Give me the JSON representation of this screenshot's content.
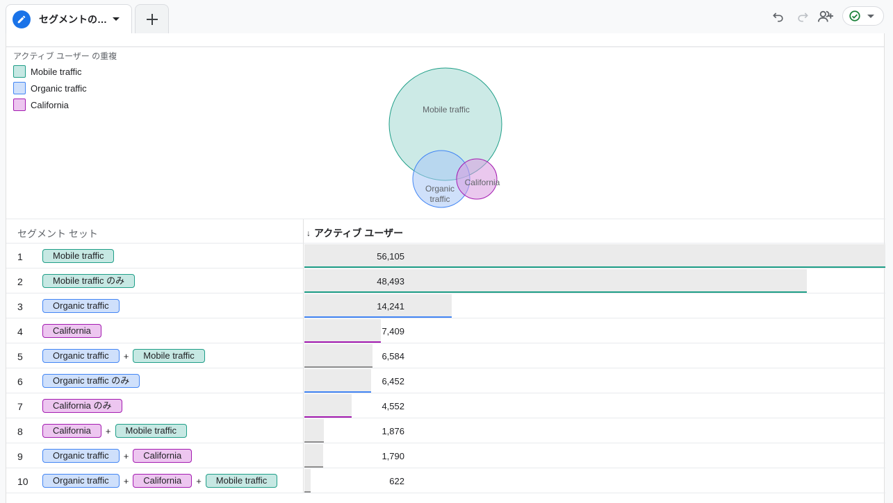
{
  "tab": {
    "label": "セグメントの…"
  },
  "colors": {
    "mobile": {
      "fill": "#c6e8e3",
      "stroke": "#1e9e87"
    },
    "organic": {
      "fill": "#cfe0fb",
      "stroke": "#4285f4"
    },
    "california": {
      "fill": "#edc6f0",
      "stroke": "#a31ab0"
    },
    "intersection": "#8f8f8f",
    "brand": "#1a73e8",
    "status_ok": "#188038"
  },
  "toolbar": {
    "icons": [
      "undo-icon",
      "redo-icon",
      "share-user-icon",
      "check-circle-icon"
    ]
  },
  "chart": {
    "title": "アクティブ ユーザー の重複",
    "legend": [
      {
        "label": "Mobile traffic",
        "key": "mobile"
      },
      {
        "label": "Organic traffic",
        "key": "organic"
      },
      {
        "label": "California",
        "key": "california"
      }
    ],
    "venn_labels": {
      "mobile": "Mobile traffic",
      "organic_1": "Organic",
      "organic_2": "traffic",
      "california": "California"
    }
  },
  "table": {
    "col_segment": "セグメント セット",
    "col_metric": "アクティブ ユーザー",
    "sort_arrow": "↓",
    "max": 56105,
    "rows": [
      {
        "num": "1",
        "value": "56,105",
        "n": 56105,
        "line": "mobile",
        "chips": [
          {
            "label": "Mobile traffic",
            "key": "mobile"
          }
        ]
      },
      {
        "num": "2",
        "value": "48,493",
        "n": 48493,
        "line": "mobile",
        "chips": [
          {
            "label": "Mobile traffic のみ",
            "key": "mobile"
          }
        ]
      },
      {
        "num": "3",
        "value": "14,241",
        "n": 14241,
        "line": "organic",
        "chips": [
          {
            "label": "Organic traffic",
            "key": "organic"
          }
        ]
      },
      {
        "num": "4",
        "value": "7,409",
        "n": 7409,
        "line": "california",
        "chips": [
          {
            "label": "California",
            "key": "california"
          }
        ]
      },
      {
        "num": "5",
        "value": "6,584",
        "n": 6584,
        "line": "intersection",
        "chips": [
          {
            "label": "Organic traffic",
            "key": "organic"
          },
          {
            "label": "Mobile traffic",
            "key": "mobile"
          }
        ]
      },
      {
        "num": "6",
        "value": "6,452",
        "n": 6452,
        "line": "organic",
        "chips": [
          {
            "label": "Organic traffic のみ",
            "key": "organic"
          }
        ]
      },
      {
        "num": "7",
        "value": "4,552",
        "n": 4552,
        "line": "california",
        "chips": [
          {
            "label": "California のみ",
            "key": "california"
          }
        ]
      },
      {
        "num": "8",
        "value": "1,876",
        "n": 1876,
        "line": "intersection",
        "chips": [
          {
            "label": "California",
            "key": "california"
          },
          {
            "label": "Mobile traffic",
            "key": "mobile"
          }
        ]
      },
      {
        "num": "9",
        "value": "1,790",
        "n": 1790,
        "line": "intersection",
        "chips": [
          {
            "label": "Organic traffic",
            "key": "organic"
          },
          {
            "label": "California",
            "key": "california"
          }
        ]
      },
      {
        "num": "10",
        "value": "622",
        "n": 622,
        "line": "intersection",
        "chips": [
          {
            "label": "Organic traffic",
            "key": "organic"
          },
          {
            "label": "California",
            "key": "california"
          },
          {
            "label": "Mobile traffic",
            "key": "mobile"
          }
        ]
      }
    ],
    "plus": "+"
  }
}
